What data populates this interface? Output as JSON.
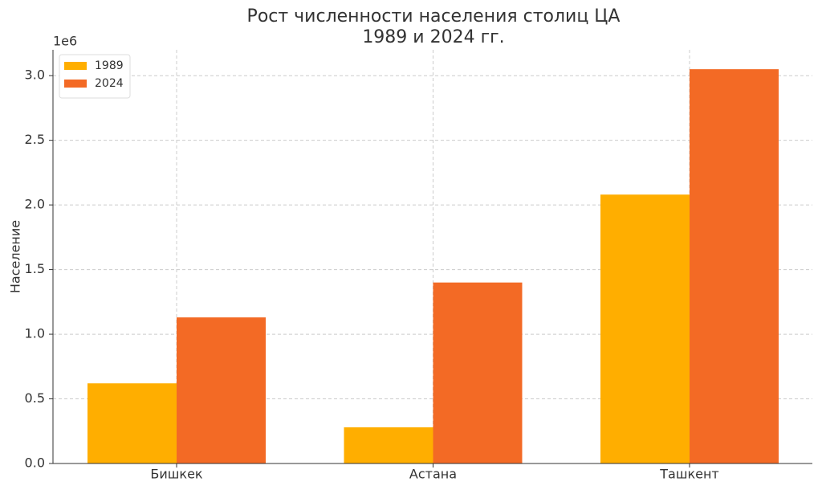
{
  "chart_data": {
    "type": "bar",
    "title": "Рост численности населения столиц ЦА\n1989 и 2024 гг.",
    "y_label": "Население",
    "y_offset_label": "1e6",
    "categories": [
      "Бишкек",
      "Астана",
      "Ташкент"
    ],
    "series": [
      {
        "name": "1989",
        "color": "#ffae00",
        "values": [
          0.62,
          0.28,
          2.08
        ]
      },
      {
        "name": "2024",
        "color": "#f36a25",
        "values": [
          1.13,
          1.4,
          3.05
        ]
      }
    ],
    "ylim": [
      0,
      3.2
    ],
    "yticks": [
      {
        "value": 0,
        "label": "0.0"
      },
      0.5,
      {
        "value": 1,
        "label": "1.0"
      },
      1.5,
      {
        "value": 2,
        "label": "2.0"
      },
      2.5,
      {
        "value": 3,
        "label": "3.0"
      }
    ],
    "grid": true,
    "legend": "upper-left"
  }
}
